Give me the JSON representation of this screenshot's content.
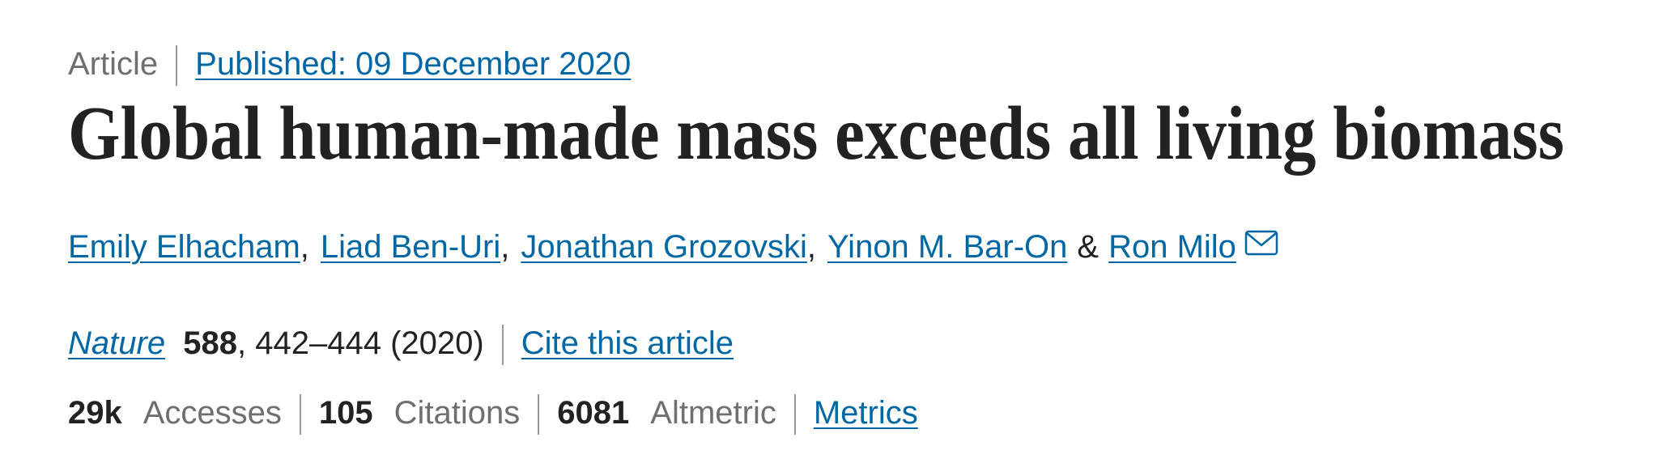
{
  "header": {
    "type": "Article",
    "published": "Published: 09 December 2020"
  },
  "title": "Global human-made mass exceeds all living biomass",
  "authors": [
    "Emily Elhacham",
    "Liad Ben-Uri",
    "Jonathan Grozovski",
    "Yinon M. Bar-On",
    "Ron Milo"
  ],
  "author_connectors": [
    ",",
    ",",
    ",",
    "&"
  ],
  "citation": {
    "journal": "Nature",
    "volume": 588,
    "pages_year": ", 442–444 (2020)",
    "cite_link": "Cite this article"
  },
  "metrics": [
    {
      "value": "29k",
      "label": "Accesses"
    },
    {
      "value": 105,
      "label": "Citations"
    },
    {
      "value": 6081,
      "label": "Altmetric"
    }
  ],
  "metrics_link": "Metrics"
}
